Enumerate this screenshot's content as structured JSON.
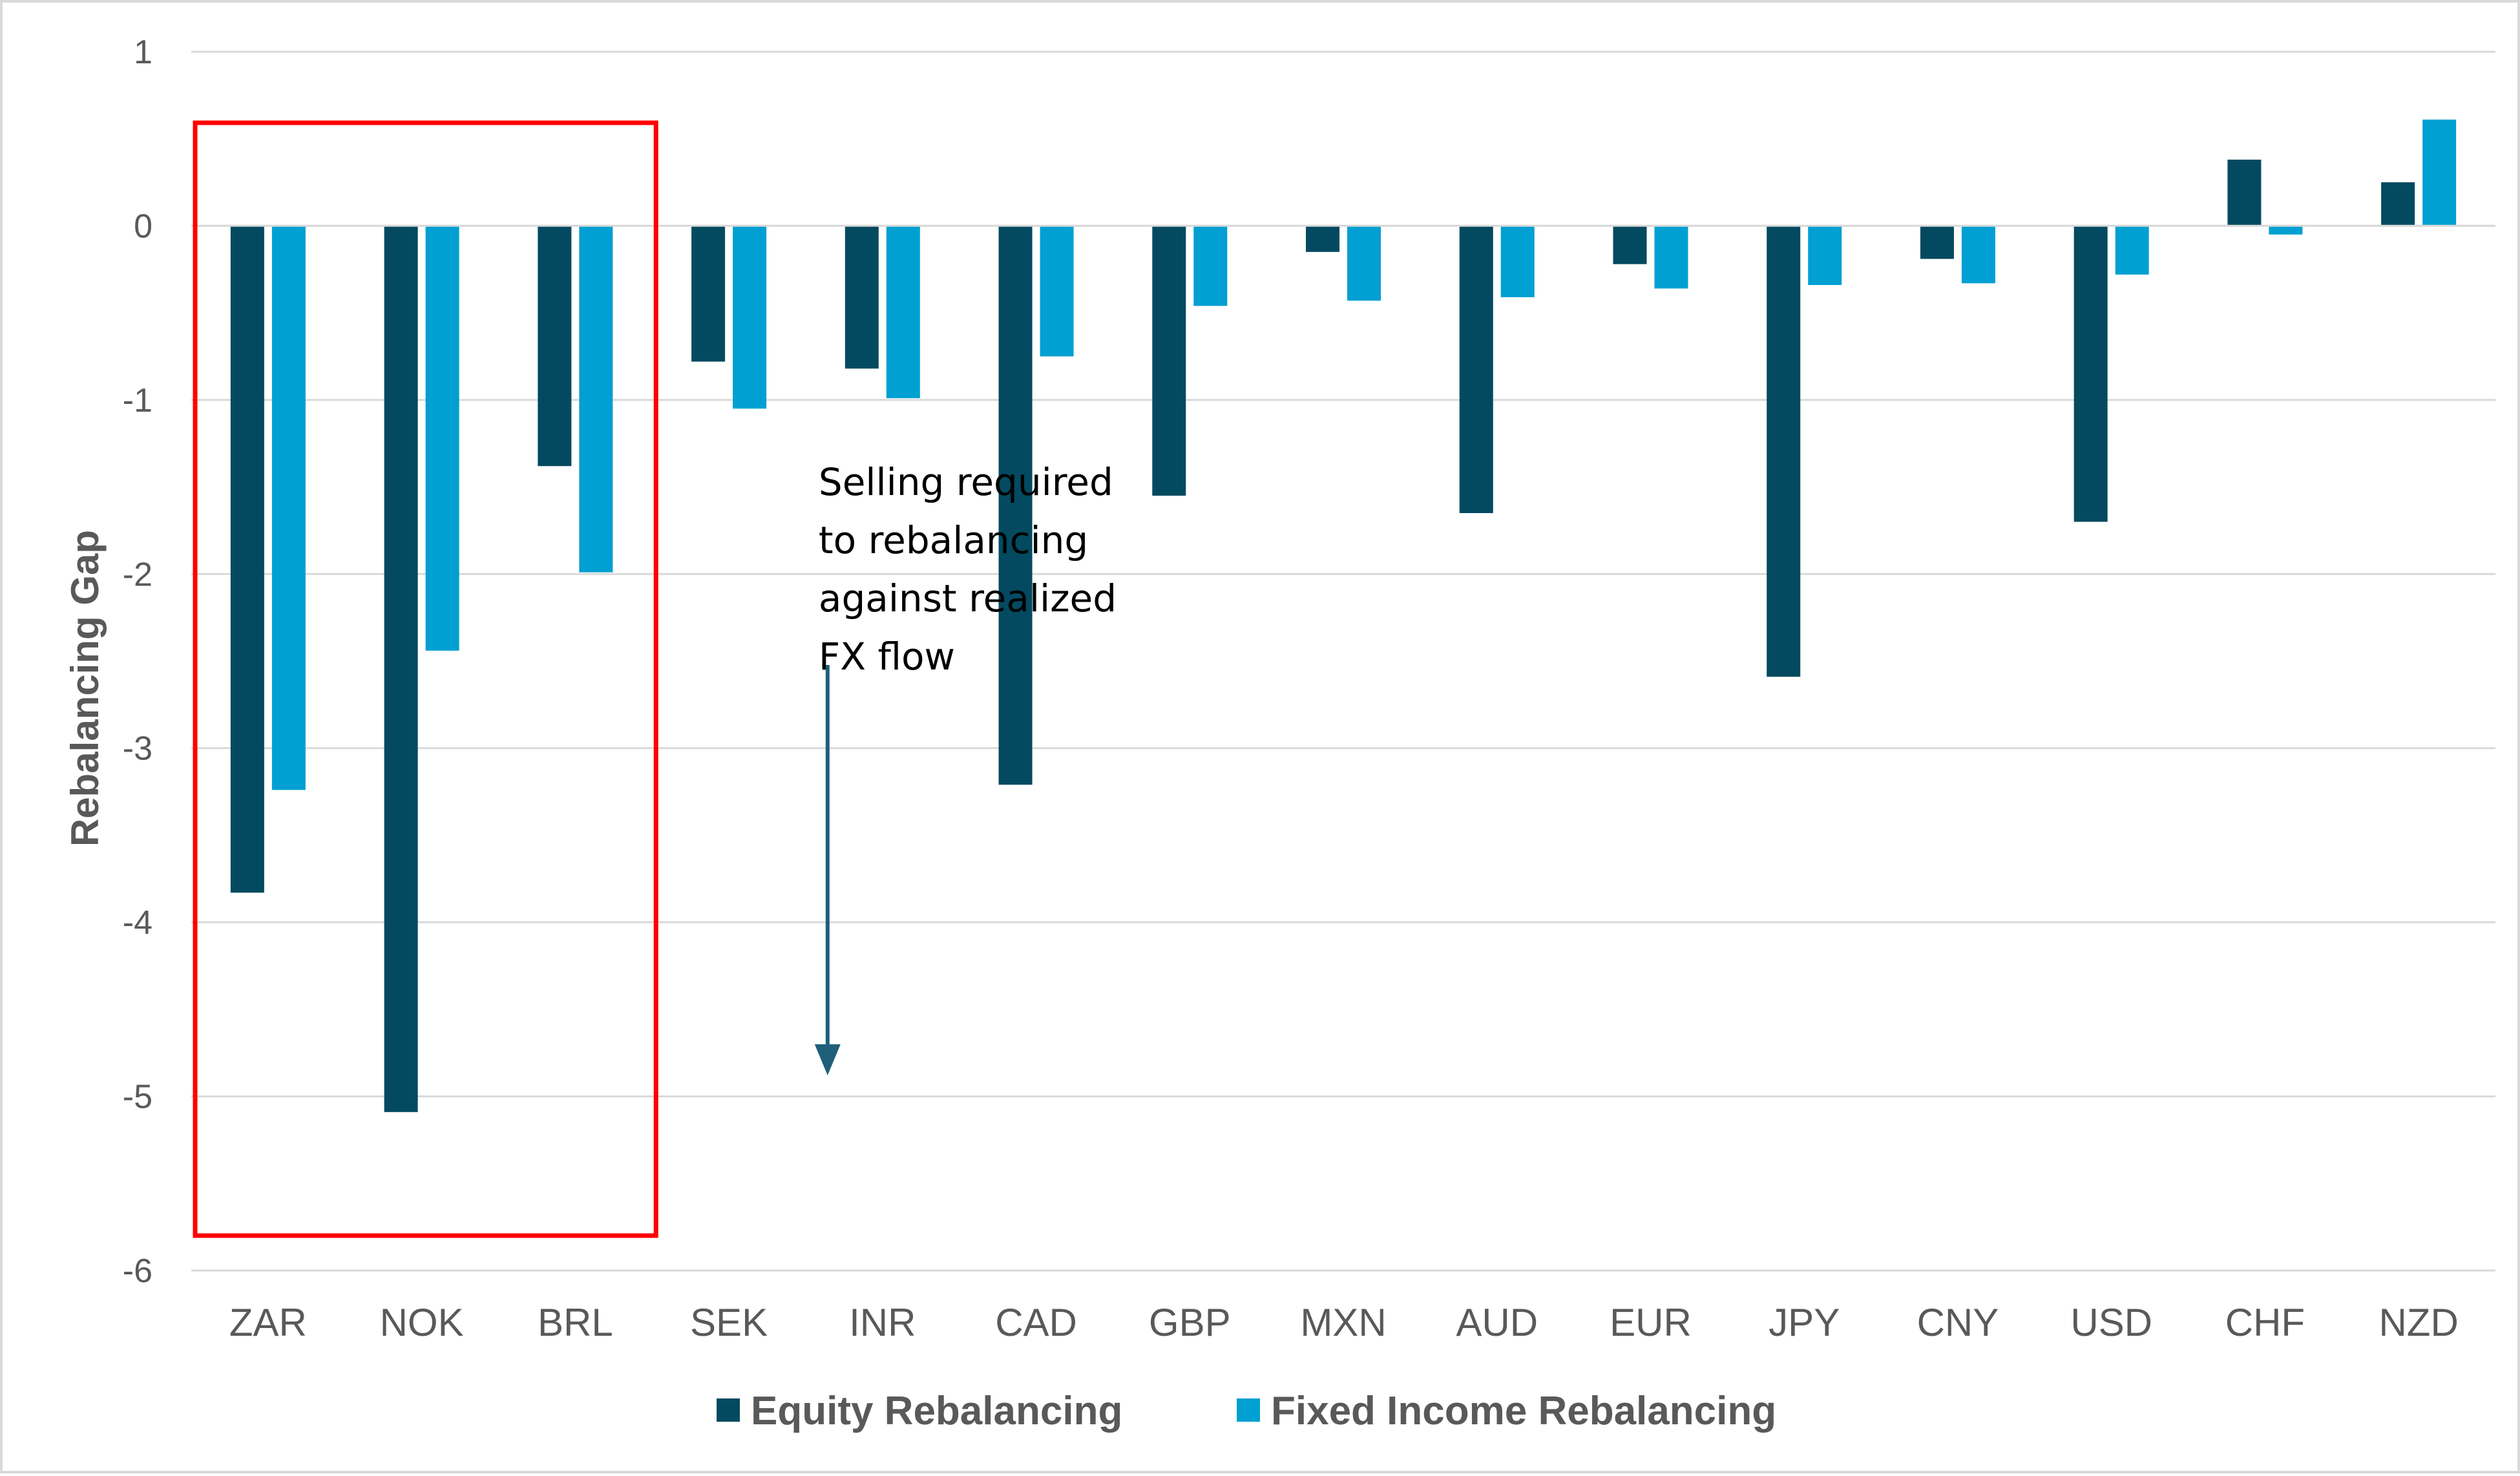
{
  "chart_data": {
    "type": "bar",
    "title": "",
    "xlabel": "",
    "ylabel": "Rebalancing Gap",
    "ylim": [
      -6,
      1
    ],
    "yticks": [
      1,
      0,
      -1,
      -2,
      -3,
      -4,
      -5,
      -6
    ],
    "grid": true,
    "legend_position": "bottom",
    "categories": [
      "ZAR",
      "NOK",
      "BRL",
      "SEK",
      "INR",
      "CAD",
      "GBP",
      "MXN",
      "AUD",
      "EUR",
      "JPY",
      "CNY",
      "USD",
      "CHF",
      "NZD"
    ],
    "series": [
      {
        "name": "Equity Rebalancing",
        "color": "#034A60",
        "values": [
          -3.83,
          -5.09,
          -1.38,
          -0.78,
          -0.82,
          -3.21,
          -1.55,
          -0.15,
          -1.65,
          -0.22,
          -2.59,
          -0.19,
          -1.7,
          0.38,
          0.25
        ]
      },
      {
        "name": "Fixed Income Rebalancing",
        "color": "#00A0D2",
        "values": [
          -3.24,
          -2.44,
          -1.99,
          -1.05,
          -0.99,
          -0.75,
          -0.46,
          -0.43,
          -0.41,
          -0.36,
          -0.34,
          -0.33,
          -0.28,
          -0.05,
          0.61
        ]
      }
    ],
    "highlight": {
      "categories": [
        "ZAR",
        "NOK",
        "BRL"
      ],
      "color": "#FF0000"
    },
    "annotation": {
      "lines": [
        "Selling required",
        "to rebalancing",
        "against realized",
        "FX flow"
      ],
      "arrow_direction": "down",
      "arrow_color": "#1F5F7A"
    }
  }
}
